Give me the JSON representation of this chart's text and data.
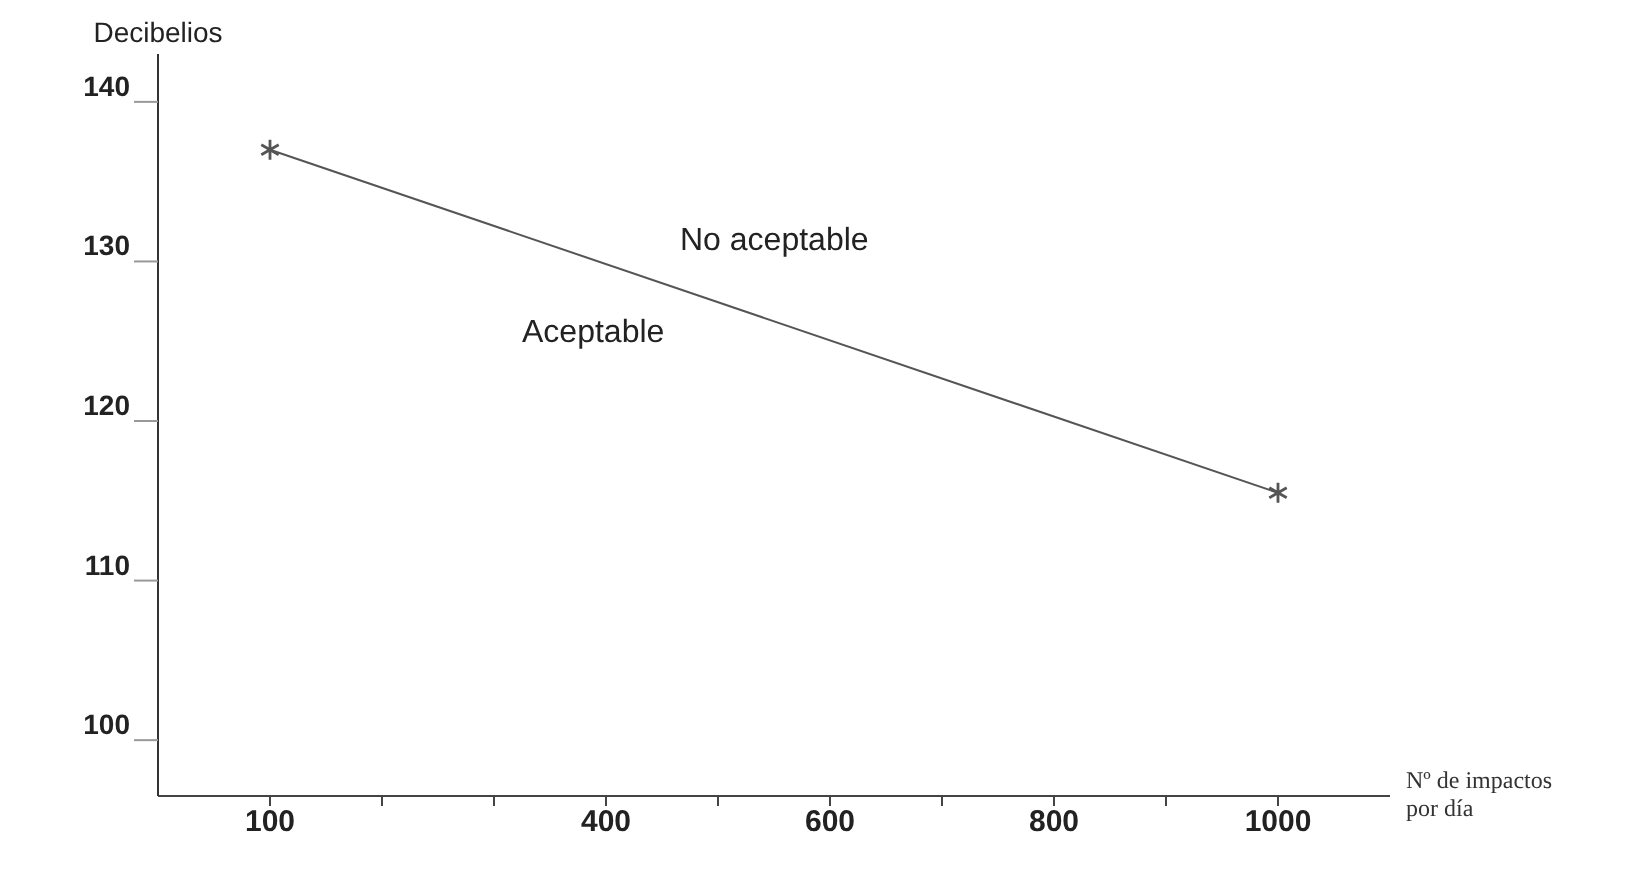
{
  "chart_data": {
    "type": "line",
    "xlabel": "Nº de impactos por día",
    "ylabel": "Decibelios",
    "x": [
      100,
      1000
    ],
    "series": [
      {
        "color": "#555555",
        "values": [
          137,
          115.5
        ]
      }
    ],
    "xlim": [
      0,
      1100
    ],
    "ylim": [
      96.5,
      143
    ],
    "xticks": [
      100,
      {
        "value": 200,
        "label": null
      },
      {
        "value": 300,
        "label": null
      },
      400,
      {
        "value": 500,
        "label": null
      },
      600,
      {
        "value": 700,
        "label": null
      },
      800,
      {
        "value": 900,
        "label": null
      },
      1000
    ],
    "yticks": [
      100,
      110,
      120,
      130,
      140
    ],
    "marker": "cross",
    "line_style": "solid",
    "annotations": [
      "No aceptable",
      "Aceptable"
    ]
  }
}
